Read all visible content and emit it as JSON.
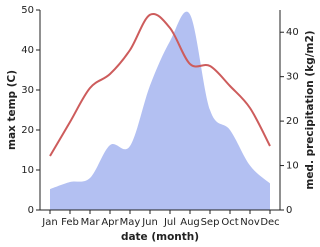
{
  "chart_data": {
    "type": "line-area",
    "x_label": "date (month)",
    "y_label": "max temp (C)",
    "y2_label": "med. precipitation (kg/m2)",
    "categories": [
      "Jan",
      "Feb",
      "Mar",
      "Apr",
      "May",
      "Jun",
      "Jul",
      "Aug",
      "Sep",
      "Oct",
      "Nov",
      "Dec"
    ],
    "ylim": [
      0,
      50
    ],
    "yticks": [
      0,
      10,
      20,
      30,
      40,
      50
    ],
    "y2lim": [
      0,
      45
    ],
    "y2ticks": [
      0,
      10,
      20,
      30,
      40
    ],
    "series": [
      {
        "name": "max temp",
        "color": "#cd5c5c",
        "values": [
          13.5,
          22,
          30.5,
          34,
          40,
          48.8,
          45.5,
          36.5,
          36,
          31,
          25.5,
          16
        ]
      },
      {
        "name": "med. precipitation",
        "color": "#b3c0f2",
        "axis": "y2",
        "values": [
          4.7,
          6.3,
          7.2,
          14.6,
          14.4,
          28,
          38,
          44,
          22.5,
          18,
          10,
          6
        ]
      }
    ]
  }
}
